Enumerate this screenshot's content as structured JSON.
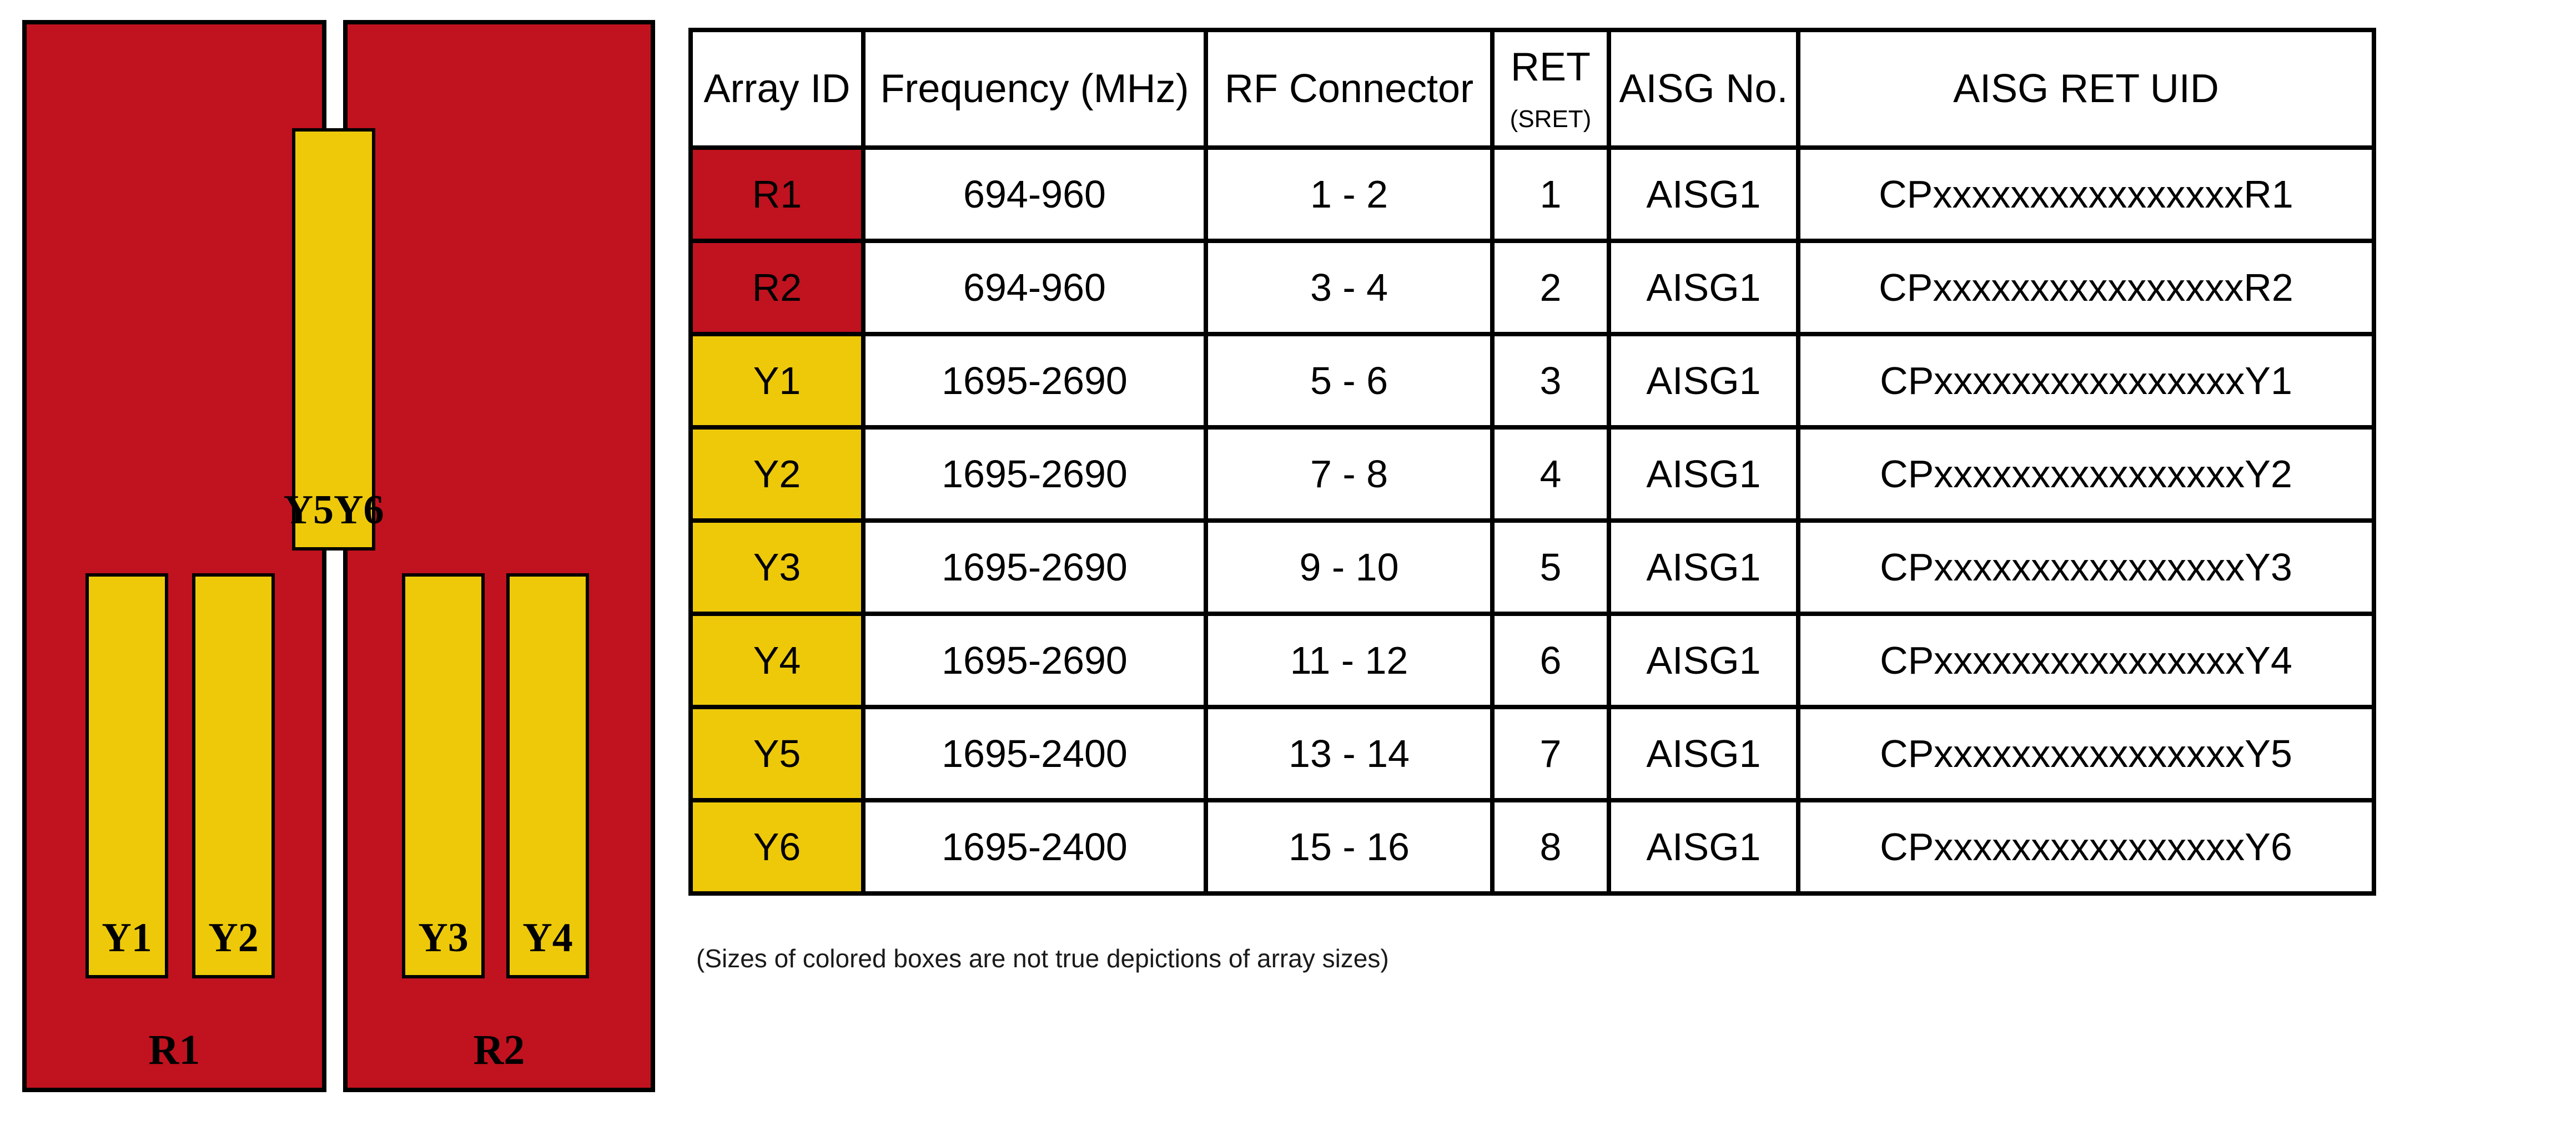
{
  "page": {
    "background": "#FFFFFF"
  },
  "diagram": {
    "panel_color": "#C1121F",
    "array_color": "#EDC90A",
    "border_color": "#000000",
    "panels": [
      {
        "label": "R1"
      },
      {
        "label": "R2"
      }
    ],
    "array_boxes": [
      {
        "label": "Y1"
      },
      {
        "label": "Y2"
      },
      {
        "label": "Y3"
      },
      {
        "label": "Y4"
      },
      {
        "label": "Y5Y6"
      }
    ]
  },
  "table": {
    "headers": {
      "array_id": "Array ID",
      "frequency": "Frequency (MHz)",
      "rf_connector": "RF Connector",
      "ret": "RET",
      "ret_sub": "(SRET)",
      "aisg_no": "AISG No.",
      "aisg_ret_uid": "AISG RET UID"
    },
    "rows": [
      {
        "array_id": "R1",
        "frequency": "694-960",
        "rf_connector": "1 - 2",
        "ret": "1",
        "aisg_no": "AISG1",
        "aisg_ret_uid": "CPxxxxxxxxxxxxxxxxR1",
        "id_bg": "#C1121F"
      },
      {
        "array_id": "R2",
        "frequency": "694-960",
        "rf_connector": "3 - 4",
        "ret": "2",
        "aisg_no": "AISG1",
        "aisg_ret_uid": "CPxxxxxxxxxxxxxxxxR2",
        "id_bg": "#C1121F"
      },
      {
        "array_id": "Y1",
        "frequency": "1695-2690",
        "rf_connector": "5 - 6",
        "ret": "3",
        "aisg_no": "AISG1",
        "aisg_ret_uid": "CPxxxxxxxxxxxxxxxxY1",
        "id_bg": "#EDC90A"
      },
      {
        "array_id": "Y2",
        "frequency": "1695-2690",
        "rf_connector": "7 - 8",
        "ret": "4",
        "aisg_no": "AISG1",
        "aisg_ret_uid": "CPxxxxxxxxxxxxxxxxY2",
        "id_bg": "#EDC90A"
      },
      {
        "array_id": "Y3",
        "frequency": "1695-2690",
        "rf_connector": "9 - 10",
        "ret": "5",
        "aisg_no": "AISG1",
        "aisg_ret_uid": "CPxxxxxxxxxxxxxxxxY3",
        "id_bg": "#EDC90A"
      },
      {
        "array_id": "Y4",
        "frequency": "1695-2690",
        "rf_connector": "11 - 12",
        "ret": "6",
        "aisg_no": "AISG1",
        "aisg_ret_uid": "CPxxxxxxxxxxxxxxxxY4",
        "id_bg": "#EDC90A"
      },
      {
        "array_id": "Y5",
        "frequency": "1695-2400",
        "rf_connector": "13 - 14",
        "ret": "7",
        "aisg_no": "AISG1",
        "aisg_ret_uid": "CPxxxxxxxxxxxxxxxxY5",
        "id_bg": "#EDC90A"
      },
      {
        "array_id": "Y6",
        "frequency": "1695-2400",
        "rf_connector": "15 - 16",
        "ret": "8",
        "aisg_no": "AISG1",
        "aisg_ret_uid": "CPxxxxxxxxxxxxxxxxY6",
        "id_bg": "#EDC90A"
      }
    ]
  },
  "footnote": "(Sizes of colored boxes are not true depictions of array sizes)"
}
